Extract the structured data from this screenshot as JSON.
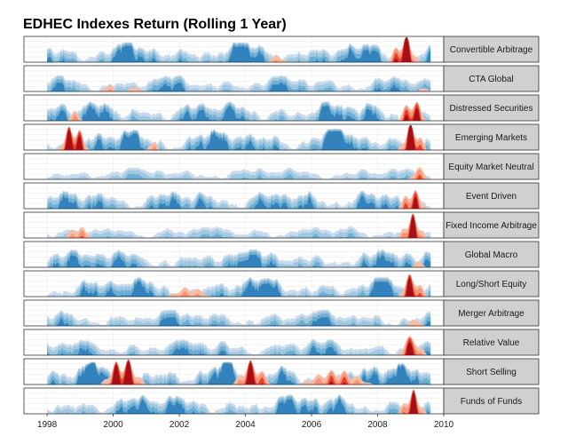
{
  "chart_data": {
    "type": "area",
    "title": "EDHEC Indexes Return (Rolling 1 Year)",
    "subtitle": "",
    "xlabel": "",
    "ylabel": "",
    "xlim": [
      1997.3,
      2010.0
    ],
    "x_ticks": [
      "1998",
      "2000",
      "2002",
      "2004",
      "2006",
      "2008",
      "2010"
    ],
    "x_tick_values": [
      1998,
      2000,
      2002,
      2004,
      2006,
      2008,
      2010
    ],
    "grid": true,
    "legend": "none",
    "facet_strips": "right",
    "data_range_years": [
      1998.0,
      2009.6
    ],
    "color_bands": {
      "positive": [
        "#c6dbef",
        "#9ecae1",
        "#6baed6",
        "#3182bd",
        "#08519c"
      ],
      "negative": [
        "#fcbba1",
        "#fc9272",
        "#ef3b2c",
        "#a50f15"
      ]
    },
    "series": [
      {
        "name": "Convertible Arbitrage",
        "seed": 11,
        "amp": [
          0.7,
          0.9
        ],
        "neg": [
          [
            2004.6,
            2005.3,
            0.3
          ],
          [
            2008.3,
            2009.3,
            1.0
          ]
        ]
      },
      {
        "name": "CTA Global",
        "seed": 23,
        "amp": [
          0.5,
          0.8
        ],
        "neg": [
          [
            1999.6,
            2000.1,
            0.35
          ],
          [
            2000.4,
            2000.9,
            0.3
          ],
          [
            2009.2,
            2009.6,
            0.25
          ]
        ]
      },
      {
        "name": "Distressed Securities",
        "seed": 37,
        "amp": [
          0.6,
          0.95
        ],
        "neg": [
          [
            1998.6,
            1999.1,
            0.4
          ],
          [
            2008.6,
            2009.5,
            0.9
          ]
        ]
      },
      {
        "name": "Emerging Markets",
        "seed": 41,
        "amp": [
          0.7,
          1.0
        ],
        "neg": [
          [
            1998.3,
            1999.3,
            1.0
          ],
          [
            2001.0,
            2001.4,
            0.45
          ],
          [
            2008.6,
            2009.5,
            1.0
          ]
        ]
      },
      {
        "name": "Equity Market Neutral",
        "seed": 53,
        "amp": [
          0.35,
          0.6
        ],
        "neg": [
          [
            2008.9,
            2009.6,
            0.5
          ]
        ]
      },
      {
        "name": "Event Driven",
        "seed": 61,
        "amp": [
          0.6,
          0.9
        ],
        "neg": [
          [
            2008.6,
            2009.5,
            0.8
          ]
        ]
      },
      {
        "name": "Fixed Income Arbitrage",
        "seed": 71,
        "amp": [
          0.35,
          0.6
        ],
        "neg": [
          [
            1998.5,
            1999.4,
            0.5
          ],
          [
            2008.6,
            2009.5,
            0.9
          ]
        ]
      },
      {
        "name": "Global Macro",
        "seed": 79,
        "amp": [
          0.55,
          0.9
        ],
        "neg": [
          [
            2009.0,
            2009.5,
            0.25
          ]
        ]
      },
      {
        "name": "Long/Short Equity",
        "seed": 83,
        "amp": [
          0.6,
          0.95
        ],
        "neg": [
          [
            2001.6,
            2003.0,
            0.4
          ],
          [
            2008.6,
            2009.5,
            0.9
          ]
        ]
      },
      {
        "name": "Merger Arbitrage",
        "seed": 97,
        "amp": [
          0.5,
          0.8
        ],
        "neg": [
          [
            2008.9,
            2009.4,
            0.35
          ]
        ]
      },
      {
        "name": "Relative Value",
        "seed": 101,
        "amp": [
          0.5,
          0.8
        ],
        "neg": [
          [
            2008.6,
            2009.5,
            0.8
          ]
        ]
      },
      {
        "name": "Short Selling",
        "seed": 113,
        "amp": [
          0.8,
          1.0
        ],
        "neg": [
          [
            1999.6,
            2001.0,
            1.0
          ],
          [
            2003.6,
            2004.8,
            0.9
          ],
          [
            2005.6,
            2007.9,
            0.6
          ]
        ]
      },
      {
        "name": "Funds of Funds",
        "seed": 127,
        "amp": [
          0.6,
          0.95
        ],
        "neg": [
          [
            2008.6,
            2009.5,
            0.9
          ]
        ]
      }
    ]
  }
}
